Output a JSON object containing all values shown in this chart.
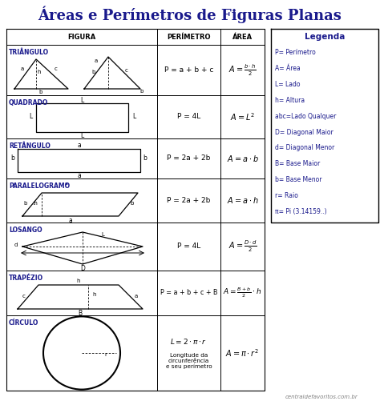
{
  "title": "Áreas e Perímetros de Figuras Planas",
  "bg_color": "#ffffff",
  "navy": "#1a1a8c",
  "black": "#000000",
  "footer": "centraldefavoritos.com.br",
  "legend_title": "Legenda",
  "legend_items": [
    "P= Perímetro",
    "A= Área",
    "L= Lado",
    "h= Altura",
    "abc=Lado Qualquer",
    "D= Diagonal Maior",
    "d= Diagonal Menor",
    "B= Base Maior",
    "b= Base Menor",
    "r= Raio",
    "π= Pi (3.14159..)"
  ],
  "row_names": [
    "TRIÂNGULO",
    "QUADRADO",
    "RETÂNGULO",
    "PARALELOGRAMO",
    "LOSANGO",
    "TRAPÉZIO",
    "CÍRCULO"
  ],
  "perimeters": [
    "P = a + b + c",
    "P = 4L",
    "P = 2a + 2b",
    "P = 2a + 2b",
    "P = 4L",
    "P = a + b + c + B",
    ""
  ],
  "areas_latex": [
    "A = \\frac{b \\cdot h}{2}",
    "A = L^2",
    "A = a \\cdot b",
    "A = a \\cdot h",
    "A = \\frac{D \\cdot d}{2}",
    "A = \\frac{B+b}{2} \\cdot h",
    "A = \\pi \\cdot r^2"
  ]
}
